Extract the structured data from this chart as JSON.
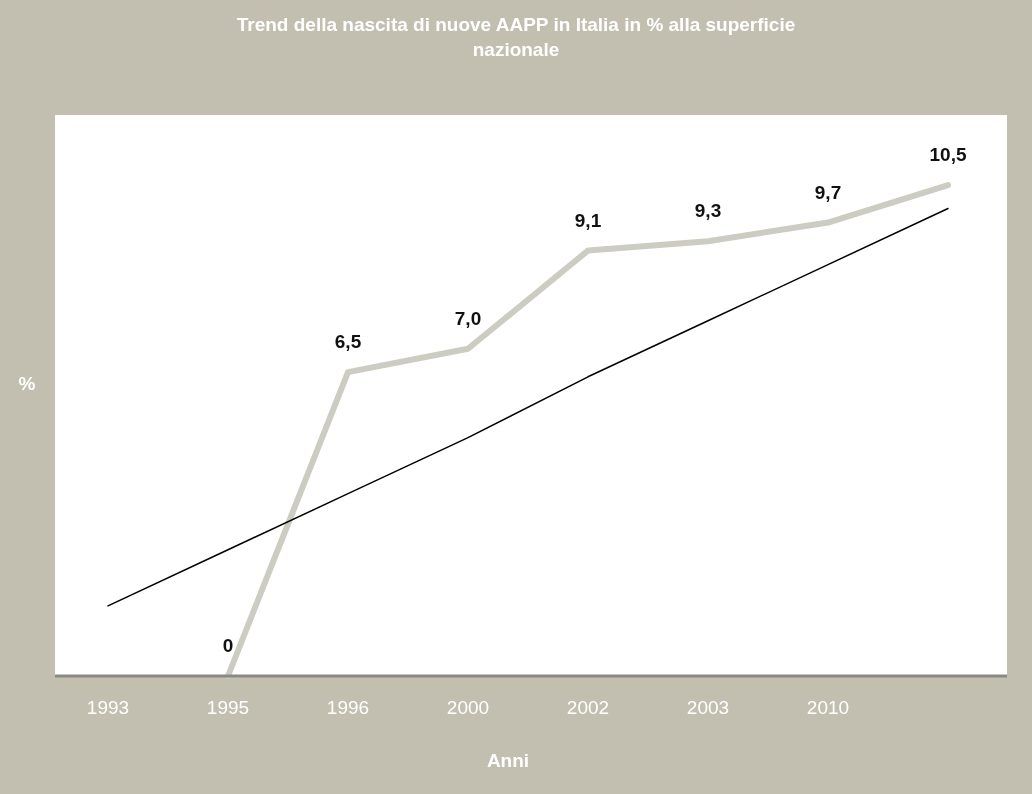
{
  "chart_data": {
    "type": "line",
    "title": "Trend della nascita di nuove AAPP in Italia in % alla superficie nazionale",
    "xlabel": "Anni",
    "ylabel": "%",
    "categories": [
      "1993",
      "1995",
      "1996",
      "2000",
      "2002",
      "2003",
      "2010",
      null
    ],
    "ylim": [
      0,
      12
    ],
    "marker": "none",
    "tick_labels": "x",
    "series": [
      {
        "color": "#cdccc2",
        "values": [
          null,
          0,
          6.5,
          7.0,
          9.1,
          9.3,
          9.7,
          10.5
        ],
        "value_labels": [
          null,
          "0",
          "6,5",
          "7,0",
          "9,1",
          "9,3",
          "9,7",
          "10,5"
        ]
      },
      {
        "type": "line",
        "color": "#000000",
        "values": [
          1.5,
          2.7,
          3.9,
          5.1,
          6.4,
          7.6,
          8.8,
          10.0
        ]
      }
    ]
  }
}
